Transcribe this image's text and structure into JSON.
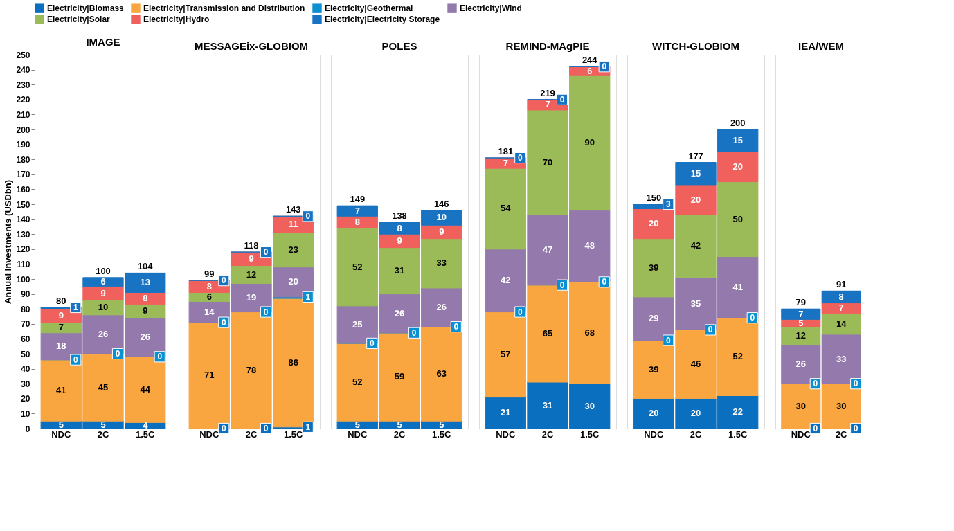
{
  "chart_data": [
    {
      "type": "bar",
      "title": "IMAGE",
      "ylabel": "Annual investments (USDbn)",
      "categories": [
        "NDC",
        "2C",
        "1.5C"
      ],
      "stacked": true,
      "data_labels": true,
      "ylim": [
        0,
        250
      ],
      "yticks": [
        0,
        10,
        20,
        30,
        40,
        50,
        60,
        70,
        80,
        90,
        100,
        110,
        120,
        130,
        140,
        150,
        160,
        170,
        180,
        190,
        200,
        210,
        220,
        230,
        240,
        250
      ],
      "grid": false,
      "legend": "top",
      "totals": [
        "80",
        "100",
        "104"
      ],
      "series": [
        {
          "name": "Electricity|Biomass",
          "color": "#0b6fbf",
          "values": [
            5,
            5,
            4
          ]
        },
        {
          "name": "Electricity|Transmission and Distribution",
          "color": "#f9a640",
          "values": [
            41,
            45,
            44
          ]
        },
        {
          "name": "Electricity|Geothermal",
          "color": "#0a8fd0",
          "values": [
            0,
            0,
            0
          ]
        },
        {
          "name": "Electricity|Wind",
          "color": "#9479ad",
          "values": [
            18,
            26,
            26
          ]
        },
        {
          "name": "Electricity|Solar",
          "color": "#9bbb59",
          "values": [
            7,
            10,
            9
          ]
        },
        {
          "name": "Electricity|Hydro",
          "color": "#f0605d",
          "values": [
            9,
            9,
            8
          ]
        },
        {
          "name": "Electricity|Electricity Storage",
          "color": "#1873c2",
          "values": [
            1,
            6,
            13
          ]
        }
      ]
    },
    {
      "type": "bar",
      "title": "MESSAGEix-GLOBIOM",
      "categories": [
        "NDC",
        "2C",
        "1.5C"
      ],
      "stacked": true,
      "data_labels": true,
      "ylim": [
        0,
        250
      ],
      "grid": false,
      "tick_labels": "x",
      "totals": [
        "99",
        "118",
        "143"
      ],
      "series": [
        {
          "name": "Electricity|Biomass",
          "color": "#0b6fbf",
          "values": [
            0,
            0,
            1
          ]
        },
        {
          "name": "Electricity|Transmission and Distribution",
          "color": "#f9a640",
          "values": [
            71,
            78,
            86
          ]
        },
        {
          "name": "Electricity|Geothermal",
          "color": "#0a8fd0",
          "values": [
            0,
            0,
            1
          ]
        },
        {
          "name": "Electricity|Wind",
          "color": "#9479ad",
          "values": [
            14,
            19,
            20
          ]
        },
        {
          "name": "Electricity|Solar",
          "color": "#9bbb59",
          "values": [
            6,
            12,
            23
          ]
        },
        {
          "name": "Electricity|Hydro",
          "color": "#f0605d",
          "values": [
            8,
            9,
            11
          ]
        },
        {
          "name": "Electricity|Electricity Storage",
          "color": "#1873c2",
          "values": [
            0,
            0,
            0
          ]
        }
      ]
    },
    {
      "type": "bar",
      "title": "POLES",
      "categories": [
        "NDC",
        "2C",
        "1.5C"
      ],
      "stacked": true,
      "data_labels": true,
      "ylim": [
        0,
        250
      ],
      "grid": false,
      "tick_labels": "x",
      "totals": [
        "149",
        "138",
        "146"
      ],
      "series": [
        {
          "name": "Electricity|Biomass",
          "color": "#0b6fbf",
          "values": [
            5,
            5,
            5
          ]
        },
        {
          "name": "Electricity|Transmission and Distribution",
          "color": "#f9a640",
          "values": [
            52,
            59,
            63
          ]
        },
        {
          "name": "Electricity|Geothermal",
          "color": "#0a8fd0",
          "values": [
            0,
            0,
            0
          ]
        },
        {
          "name": "Electricity|Wind",
          "color": "#9479ad",
          "values": [
            25,
            26,
            26
          ]
        },
        {
          "name": "Electricity|Solar",
          "color": "#9bbb59",
          "values": [
            52,
            31,
            33
          ]
        },
        {
          "name": "Electricity|Hydro",
          "color": "#f0605d",
          "values": [
            8,
            9,
            9
          ]
        },
        {
          "name": "Electricity|Electricity Storage",
          "color": "#1873c2",
          "values": [
            7,
            8,
            10
          ]
        }
      ]
    },
    {
      "type": "bar",
      "title": "REMIND-MAgPIE",
      "categories": [
        "NDC",
        "2C",
        "1.5C"
      ],
      "stacked": true,
      "data_labels": true,
      "ylim": [
        0,
        250
      ],
      "grid": false,
      "tick_labels": "x",
      "totals": [
        "181",
        "219",
        "244"
      ],
      "series": [
        {
          "name": "Electricity|Biomass",
          "color": "#0b6fbf",
          "values": [
            21,
            31,
            30
          ]
        },
        {
          "name": "Electricity|Transmission and Distribution",
          "color": "#f9a640",
          "values": [
            57,
            65,
            68
          ]
        },
        {
          "name": "Electricity|Geothermal",
          "color": "#0a8fd0",
          "values": [
            0,
            0,
            0
          ]
        },
        {
          "name": "Electricity|Wind",
          "color": "#9479ad",
          "values": [
            42,
            47,
            48
          ]
        },
        {
          "name": "Electricity|Solar",
          "color": "#9bbb59",
          "values": [
            54,
            70,
            90
          ]
        },
        {
          "name": "Electricity|Hydro",
          "color": "#f0605d",
          "values": [
            7,
            7,
            6
          ]
        },
        {
          "name": "Electricity|Electricity Storage",
          "color": "#1873c2",
          "values": [
            0,
            0,
            0
          ]
        }
      ]
    },
    {
      "type": "bar",
      "title": "WITCH-GLOBIOM",
      "categories": [
        "NDC",
        "2C",
        "1.5C"
      ],
      "stacked": true,
      "data_labels": true,
      "ylim": [
        0,
        250
      ],
      "grid": false,
      "tick_labels": "x",
      "totals": [
        "150",
        "177",
        "200"
      ],
      "series": [
        {
          "name": "Electricity|Biomass",
          "color": "#0b6fbf",
          "values": [
            20,
            20,
            22
          ]
        },
        {
          "name": "Electricity|Transmission and Distribution",
          "color": "#f9a640",
          "values": [
            39,
            46,
            52
          ]
        },
        {
          "name": "Electricity|Geothermal",
          "color": "#0a8fd0",
          "values": [
            0,
            0,
            0
          ]
        },
        {
          "name": "Electricity|Wind",
          "color": "#9479ad",
          "values": [
            29,
            35,
            41
          ]
        },
        {
          "name": "Electricity|Solar",
          "color": "#9bbb59",
          "values": [
            39,
            42,
            50
          ]
        },
        {
          "name": "Electricity|Hydro",
          "color": "#f0605d",
          "values": [
            20,
            20,
            20
          ]
        },
        {
          "name": "Electricity|Electricity Storage",
          "color": "#1873c2",
          "values": [
            3,
            15,
            15
          ]
        }
      ]
    },
    {
      "type": "bar",
      "title": "IEA/WEM",
      "categories": [
        "NDC",
        "2C"
      ],
      "stacked": true,
      "data_labels": true,
      "ylim": [
        0,
        250
      ],
      "grid": false,
      "tick_labels": "x",
      "totals": [
        "79",
        "91"
      ],
      "series": [
        {
          "name": "Electricity|Biomass",
          "color": "#0b6fbf",
          "values": [
            0,
            0
          ]
        },
        {
          "name": "Electricity|Transmission and Distribution",
          "color": "#f9a640",
          "values": [
            30,
            30
          ]
        },
        {
          "name": "Electricity|Geothermal",
          "color": "#0a8fd0",
          "values": [
            0,
            0
          ]
        },
        {
          "name": "Electricity|Wind",
          "color": "#9479ad",
          "values": [
            26,
            33
          ]
        },
        {
          "name": "Electricity|Solar",
          "color": "#9bbb59",
          "values": [
            12,
            14
          ]
        },
        {
          "name": "Electricity|Hydro",
          "color": "#f0605d",
          "values": [
            5,
            7
          ]
        },
        {
          "name": "Electricity|Electricity Storage",
          "color": "#1873c2",
          "values": [
            7,
            8
          ]
        }
      ]
    }
  ]
}
